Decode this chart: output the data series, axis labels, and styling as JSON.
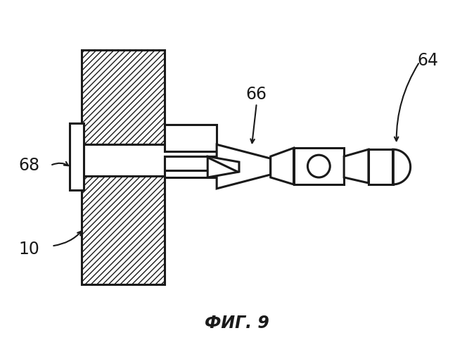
{
  "title": "ФИГ. 9",
  "bg_color": "#ffffff",
  "line_color": "#1a1a1a",
  "label_64": "64",
  "label_66": "66",
  "label_68": "68",
  "label_10": "10",
  "figsize": [
    6.74,
    5.0
  ],
  "dpi": 100
}
